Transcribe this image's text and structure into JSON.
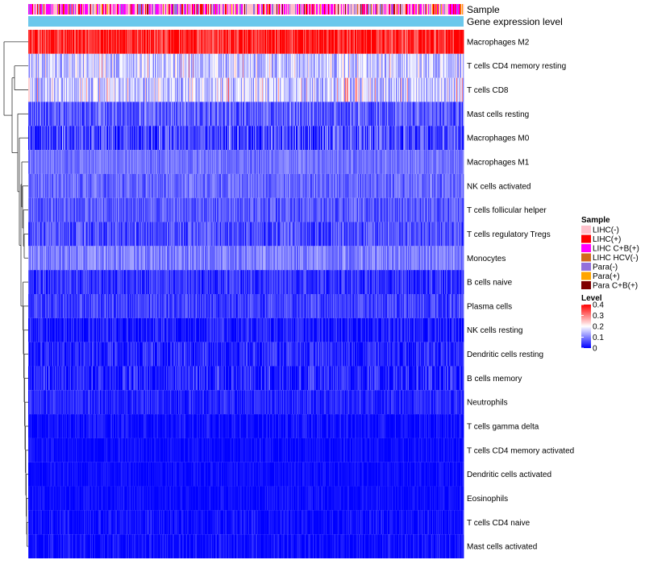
{
  "chart_data": {
    "type": "heatmap",
    "annotation_track_labels": {
      "sample": "Sample",
      "gene_expression_level": "Gene expression level"
    },
    "rows": [
      {
        "label": "Macrophages M2",
        "mean": 0.36,
        "spread": 0.06,
        "accent": 0.5
      },
      {
        "label": "T cells CD4 memory resting",
        "mean": 0.15,
        "spread": 0.06,
        "accent": 0.1
      },
      {
        "label": "T cells CD8",
        "mean": 0.15,
        "spread": 0.06,
        "accent": 0.14
      },
      {
        "label": "Mast cells resting",
        "mean": 0.07,
        "spread": 0.05,
        "accent": 0.03
      },
      {
        "label": "Macrophages M0",
        "mean": 0.05,
        "spread": 0.06,
        "accent": 0.06
      },
      {
        "label": "Macrophages M1",
        "mean": 0.09,
        "spread": 0.03,
        "accent": 0.0
      },
      {
        "label": "NK cells activated",
        "mean": 0.08,
        "spread": 0.04,
        "accent": 0.0
      },
      {
        "label": "T cells follicular helper",
        "mean": 0.07,
        "spread": 0.04,
        "accent": 0.0
      },
      {
        "label": "T cells regulatory  Tregs",
        "mean": 0.06,
        "spread": 0.05,
        "accent": 0.01
      },
      {
        "label": "Monocytes",
        "mean": 0.1,
        "spread": 0.04,
        "accent": 0.01
      },
      {
        "label": "B cells naive",
        "mean": 0.04,
        "spread": 0.04,
        "accent": 0.0
      },
      {
        "label": "Plasma cells",
        "mean": 0.05,
        "spread": 0.04,
        "accent": 0.0
      },
      {
        "label": "NK cells resting",
        "mean": 0.02,
        "spread": 0.04,
        "accent": 0.0
      },
      {
        "label": "Dendritic cells resting",
        "mean": 0.03,
        "spread": 0.04,
        "accent": 0.0
      },
      {
        "label": "B cells memory",
        "mean": 0.03,
        "spread": 0.05,
        "accent": 0.0
      },
      {
        "label": "Neutrophils",
        "mean": 0.03,
        "spread": 0.03,
        "accent": 0.0
      },
      {
        "label": "T cells gamma delta",
        "mean": 0.01,
        "spread": 0.03,
        "accent": 0.0
      },
      {
        "label": "T cells CD4 memory activated",
        "mean": 0.01,
        "spread": 0.02,
        "accent": 0.0
      },
      {
        "label": "Dendritic cells activated",
        "mean": 0.01,
        "spread": 0.02,
        "accent": 0.0
      },
      {
        "label": "Eosinophils",
        "mean": 0.01,
        "spread": 0.02,
        "accent": 0.0
      },
      {
        "label": "T cells CD4 naive",
        "mean": 0.01,
        "spread": 0.03,
        "accent": 0.0
      },
      {
        "label": "Mast cells activated",
        "mean": 0.01,
        "spread": 0.03,
        "accent": 0.0
      }
    ],
    "n_samples": 540,
    "value_range": [
      0,
      0.4
    ],
    "color_scale": [
      "#0000FF",
      "#FFFFFF",
      "#FF0000"
    ],
    "legend_sample": {
      "title": "Sample",
      "entries": [
        {
          "label": "LIHC(-)",
          "color": "#FFC0CB",
          "weight": 0.4
        },
        {
          "label": "LIHC(+)",
          "color": "#FF0000",
          "weight": 0.12
        },
        {
          "label": "LIHC C+B(+)",
          "color": "#FF00FF",
          "weight": 0.3
        },
        {
          "label": "LIHC HCV(-)",
          "color": "#D2691E",
          "weight": 0.02
        },
        {
          "label": "Para(-)",
          "color": "#9370DB",
          "weight": 0.12
        },
        {
          "label": "Para(+)",
          "color": "#FFA500",
          "weight": 0.02
        },
        {
          "label": "Para C+B(+)",
          "color": "#800000",
          "weight": 0.02
        }
      ]
    },
    "gene_expression_color": "#6CC8EC",
    "legend_level": {
      "title": "Level",
      "ticks": [
        {
          "label": "0.4",
          "value": 0.4
        },
        {
          "label": "0.3",
          "value": 0.3
        },
        {
          "label": "0.2",
          "value": 0.2
        },
        {
          "label": "0.1",
          "value": 0.1
        },
        {
          "label": "0",
          "value": 0
        }
      ]
    }
  }
}
